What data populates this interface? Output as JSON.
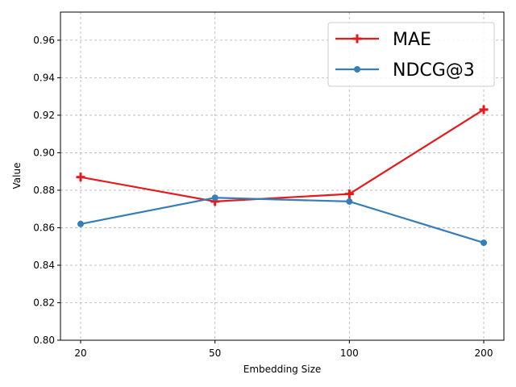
{
  "chart_data": {
    "type": "line",
    "categories": [
      "20",
      "50",
      "100",
      "200"
    ],
    "series": [
      {
        "name": "MAE",
        "values": [
          0.887,
          0.874,
          0.878,
          0.923
        ],
        "color": "#e41a1c",
        "marker": "plus"
      },
      {
        "name": "NDCG@3",
        "values": [
          0.862,
          0.876,
          0.874,
          0.852
        ],
        "color": "#377eb8",
        "marker": "circle"
      }
    ],
    "title": "",
    "xlabel": "Embedding Size",
    "ylabel": "Value",
    "ylim": [
      0.8,
      0.975
    ],
    "yticks": [
      "0.80",
      "0.82",
      "0.84",
      "0.86",
      "0.88",
      "0.90",
      "0.92",
      "0.94",
      "0.96"
    ],
    "grid": true,
    "legend_position": "top-right"
  }
}
